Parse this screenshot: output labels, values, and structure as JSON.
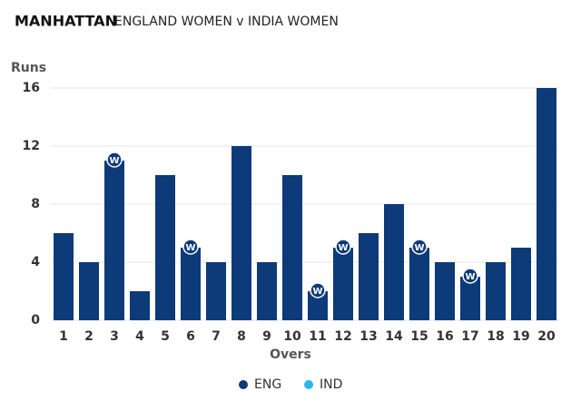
{
  "chart_data": {
    "type": "bar",
    "title": "MANHATTAN",
    "subtitle": "ENGLAND WOMEN v INDIA WOMEN",
    "y_label": "Runs",
    "x_label": "Overs",
    "categories": [
      "1",
      "2",
      "3",
      "4",
      "5",
      "6",
      "7",
      "8",
      "9",
      "10",
      "11",
      "12",
      "13",
      "14",
      "15",
      "16",
      "17",
      "18",
      "19",
      "20"
    ],
    "series": [
      {
        "name": "ENG",
        "color": "#0d3a78",
        "values": [
          6,
          4,
          11,
          2,
          10,
          5,
          4,
          12,
          4,
          10,
          2,
          5,
          6,
          8,
          5,
          4,
          3,
          4,
          5,
          16
        ],
        "wickets": [
          0,
          0,
          1,
          0,
          0,
          1,
          0,
          0,
          0,
          0,
          1,
          1,
          0,
          0,
          1,
          0,
          1,
          0,
          0,
          0
        ]
      },
      {
        "name": "IND",
        "color": "#2bb7ea",
        "values": [
          null,
          null,
          null,
          null,
          null,
          null,
          null,
          null,
          null,
          null,
          null,
          null,
          null,
          null,
          null,
          null,
          null,
          null,
          null,
          null
        ]
      }
    ],
    "wicket_label": "W",
    "ylim": [
      0,
      16
    ],
    "yticks": [
      0,
      4,
      8,
      12,
      16
    ],
    "grid": true
  }
}
